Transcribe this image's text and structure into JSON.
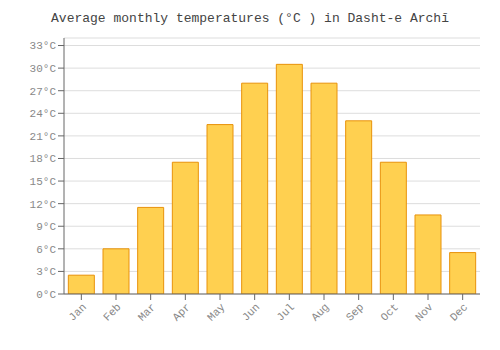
{
  "chart_data": {
    "type": "bar",
    "title": "Average monthly temperatures (°C ) in Dasht-e Archī",
    "categories": [
      "Jan",
      "Feb",
      "Mar",
      "Apr",
      "May",
      "Jun",
      "Jul",
      "Aug",
      "Sep",
      "Oct",
      "Nov",
      "Dec"
    ],
    "values": [
      2.5,
      6.0,
      11.5,
      17.5,
      22.5,
      28.0,
      30.5,
      28.0,
      23.0,
      17.5,
      10.5,
      5.5
    ],
    "color": "#FFD050",
    "ylim": [
      0,
      34
    ],
    "yticks": [
      {
        "value": 0,
        "label": "0°C"
      },
      {
        "value": 3,
        "label": "3°C"
      },
      {
        "value": 6,
        "label": "6°C"
      },
      {
        "value": 9,
        "label": "9°C"
      },
      {
        "value": 12,
        "label": "12°C"
      },
      {
        "value": 15,
        "label": "15°C"
      },
      {
        "value": 18,
        "label": "18°C"
      },
      {
        "value": 21,
        "label": "21°C"
      },
      {
        "value": 24,
        "label": "24°C"
      },
      {
        "value": 27,
        "label": "27°C"
      },
      {
        "value": 30,
        "label": "30°C"
      },
      {
        "value": 33,
        "label": "33°C"
      }
    ],
    "grid": true
  }
}
